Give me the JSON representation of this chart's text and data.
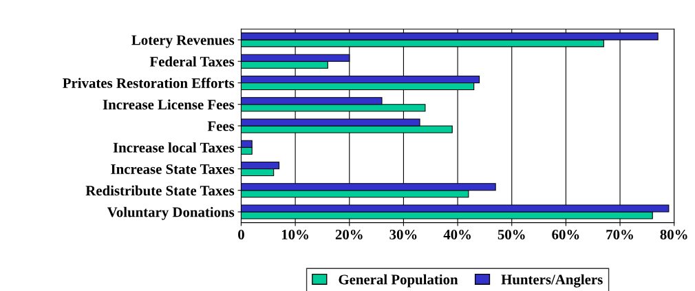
{
  "chart_data": {
    "type": "bar",
    "orientation": "horizontal",
    "categories": [
      "Lotery Revenues",
      "Federal Taxes",
      "Privates Restoration Efforts",
      "Increase License Fees",
      "Fees",
      "Increase local Taxes",
      "Increase State Taxes",
      "Redistribute State Taxes",
      "Voluntary Donations"
    ],
    "series": [
      {
        "name": "General Population",
        "color": "#00cc99",
        "values": [
          67,
          16,
          43,
          34,
          39,
          2,
          6,
          42,
          76
        ]
      },
      {
        "name": "Hunters/Anglers",
        "color": "#3333cc",
        "values": [
          77,
          20,
          44,
          26,
          33,
          2,
          7,
          47,
          79
        ]
      }
    ],
    "xlim": [
      0,
      80
    ],
    "xticks": [
      0,
      {
        "value": 10,
        "label": "10%"
      },
      {
        "value": 20,
        "label": "20%"
      },
      {
        "value": 30,
        "label": "30%"
      },
      {
        "value": 40,
        "label": "40%"
      },
      {
        "value": 50,
        "label": "50%"
      },
      {
        "value": 60,
        "label": "60%"
      },
      {
        "value": 70,
        "label": "70%"
      },
      {
        "value": 80,
        "label": "80%"
      }
    ],
    "grid": "x",
    "legend": "bottom"
  }
}
